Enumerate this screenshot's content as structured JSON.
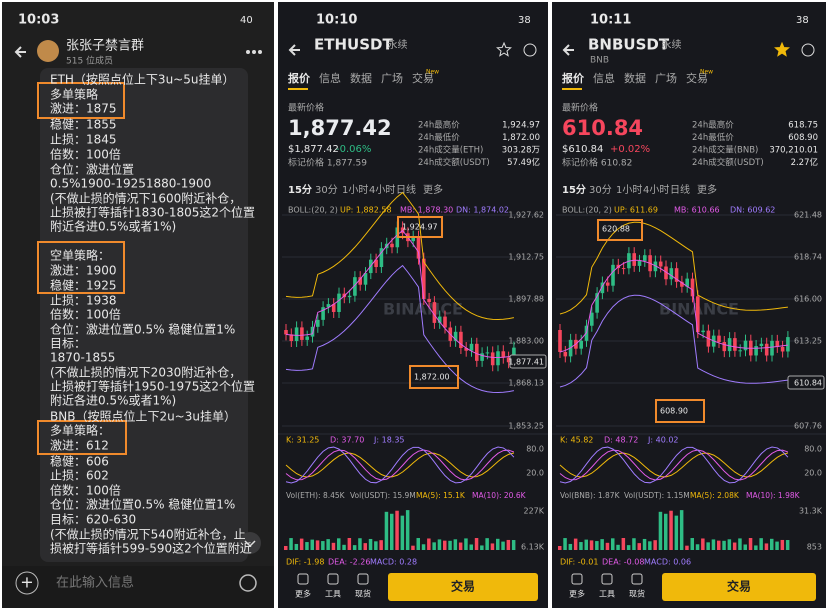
{
  "chat": {
    "status_time": "10:03",
    "battery": "40",
    "title": "张张子禁言群",
    "subtitle": "515 位成员",
    "lines": [
      "ETH（按照点位上下3u~5u挂单）",
      "多单策略",
      "激进：1875",
      "稳健：1855",
      "止损：1845",
      "倍数：100倍",
      "仓位：激进位置",
      "0.5%1900-19251880-1900",
      "(不做止损的情况下1600附近补仓，",
      "止损被打等插针1830-1805这2个位置",
      "附近各进0.5%或者1%)",
      "空单策略：",
      "激进：1900",
      "稳健：1925",
      "止损：1938",
      "倍数：100倍",
      "仓位：激进位置0.5%   稳健位置1%",
      "目标：",
      "1870-1855",
      "(不做止损的情况下2030附近补仓，",
      "止损被打等插针1950-1975这2个位置",
      "附近各进0.5%或者1%)",
      "BNB（按照点位上下2u~3u挂单）",
      "多单策略：",
      "激进：612",
      "稳健：606",
      "止损：602",
      "倍数：100倍",
      "仓位：激进位置0.5%   稳健位置1%",
      "目标：620-630",
      "(不做止损的情况下540附近补仓，止",
      "损被打等插针599-590这2个位置附近"
    ],
    "input_placeholder": "在此输入信息"
  },
  "eth": {
    "status_time": "10:10",
    "battery": "38",
    "symbol": "ETHUSDT",
    "tag": "永续",
    "tabs": [
      "报价",
      "信息",
      "数据",
      "广场",
      "交易"
    ],
    "new_badge": "New",
    "price_label": "最新价格",
    "price": "1,877.42",
    "usd_price": "$1,877.42",
    "change": "-0.06%",
    "mark_price": "标记价格 1,877.59",
    "stats": [
      [
        "24h最高价",
        "1,924.97"
      ],
      [
        "24h最低价",
        "1,872.00"
      ],
      [
        "24h成交量(ETH)",
        "303.28万"
      ],
      [
        "24h成交额(USDT)",
        "57.49亿"
      ]
    ],
    "intervals": [
      "15分",
      "30分",
      "1小时",
      "4小时",
      "日线",
      "更多"
    ],
    "boll": [
      "BOLL:(20, 2)",
      "UP: 1,882.58",
      "MB: 1,878.30",
      "DN: 1,874.02"
    ],
    "axis": [
      "1,927.62",
      "1,912.75",
      "1,897.88",
      "1,883.00",
      "1,868.13",
      "1,853.25"
    ],
    "current": "1,877.41",
    "high_label": "1,924.97",
    "low_label": "1,872.00",
    "watermark": "BINANCE",
    "kdj": [
      "K: 31.25",
      "D: 37.70",
      "J: 18.35"
    ],
    "kdj_axis": [
      "80.0",
      "20.0"
    ],
    "vol": [
      "Vol(ETH): 8.45K",
      "Vol(USDT): 15.9M",
      "MA(5): 15.1K",
      "MA(10): 20.6K"
    ],
    "vol_axis": [
      "227K",
      "6.13K"
    ],
    "macd": [
      "DIF: -1.98",
      "DEA: -2.26",
      "MACD: 0.28"
    ],
    "bottom": [
      "更多",
      "工具",
      "现货"
    ],
    "trade": "交易"
  },
  "bnb": {
    "status_time": "10:11",
    "battery": "38",
    "symbol": "BNBUSDT",
    "tag": "永续",
    "subtitle": "BNB",
    "tabs": [
      "报价",
      "信息",
      "数据",
      "广场",
      "交易"
    ],
    "new_badge": "New",
    "price_label": "最新价格",
    "price": "610.84",
    "usd_price": "$610.84",
    "change": "+0.02%",
    "mark_price": "标记价格 610.82",
    "stats": [
      [
        "24h最高价",
        "618.75"
      ],
      [
        "24h最低价",
        "608.90"
      ],
      [
        "24h成交量(BNB)",
        "370,210.01"
      ],
      [
        "24h成交额(USDT)",
        "2.27亿"
      ]
    ],
    "intervals": [
      "15分",
      "30分",
      "1小时",
      "4小时",
      "日线",
      "更多"
    ],
    "boll": [
      "BOLL:(20, 2)",
      "UP: 611.69",
      "MB: 610.66",
      "DN: 609.62"
    ],
    "axis": [
      "621.48",
      "618.74",
      "616.00",
      "613.25",
      "610.51",
      "607.76"
    ],
    "current": "610.84",
    "high_label": "620.88",
    "low_label": "608.90",
    "watermark": "BINANCE",
    "kdj": [
      "K: 45.82",
      "D: 48.72",
      "J: 40.02"
    ],
    "kdj_axis": [
      "80.0",
      "20.0"
    ],
    "vol": [
      "Vol(BNB): 1.87K",
      "Vol(USDT): 1.15M",
      "MA(5): 2.08K",
      "MA(10): 1.98K"
    ],
    "vol_axis": [
      "31.3K",
      "853"
    ],
    "macd": [
      "DIF: -0.01",
      "DEA: -0.08",
      "MACD: 0.06"
    ],
    "bottom": [
      "更多",
      "工具",
      "现货"
    ],
    "trade": "交易"
  }
}
